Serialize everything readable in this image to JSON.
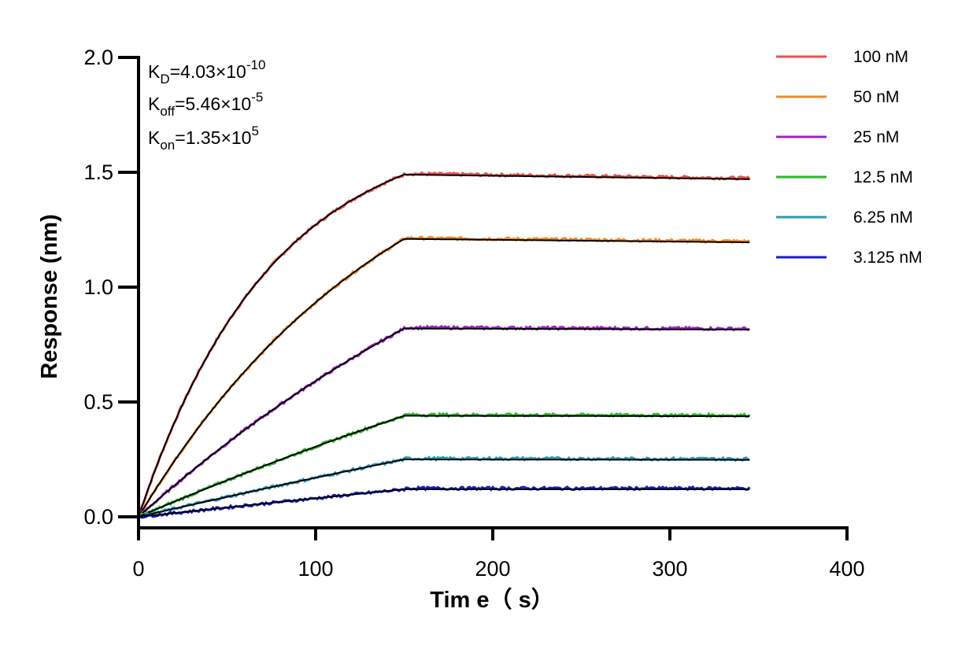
{
  "chart_data": {
    "type": "line",
    "xlabel": "Tim e（ s）",
    "ylabel": "Response (nm)",
    "xlim": [
      0,
      400
    ],
    "ylim": [
      0,
      2.0
    ],
    "xticks": [
      "0",
      "100",
      "200",
      "300",
      "400"
    ],
    "yticks": [
      "0.0",
      "0.5",
      "1.0",
      "1.5",
      "2.0"
    ],
    "grid": false,
    "legend_position": "top-right",
    "kinetics": {
      "kd": {
        "base": "K",
        "sub": "D",
        "mant": "=4.03×10",
        "exp": "-10"
      },
      "koff": {
        "base": "K",
        "sub": "off",
        "mant": "=5.46×10",
        "exp": "-5"
      },
      "kon": {
        "base": "K",
        "sub": "on",
        "mant": "=1.35×10",
        "exp": "5"
      }
    },
    "association_end": 150,
    "dissociation_end": 345,
    "series": [
      {
        "name": "100 nM",
        "color": "#e8504a",
        "plateau": 1.49,
        "end": 1.47,
        "k": 0.0135
      },
      {
        "name": "50 nM",
        "color": "#f4892b",
        "plateau": 1.21,
        "end": 1.195,
        "k": 0.0068
      },
      {
        "name": "25 nM",
        "color": "#a020c8",
        "plateau": 0.82,
        "end": 0.815,
        "k": 0.0034
      },
      {
        "name": "12.5 nM",
        "color": "#2ab82a",
        "plateau": 0.44,
        "end": 0.438,
        "k": 0.0017
      },
      {
        "name": "6.25 nM",
        "color": "#2a9ab8",
        "plateau": 0.25,
        "end": 0.248,
        "k": 0.0009
      },
      {
        "name": "3.125 nM",
        "color": "#1a1ad2",
        "plateau": 0.12,
        "end": 0.12,
        "k": 0.0004
      }
    ]
  }
}
